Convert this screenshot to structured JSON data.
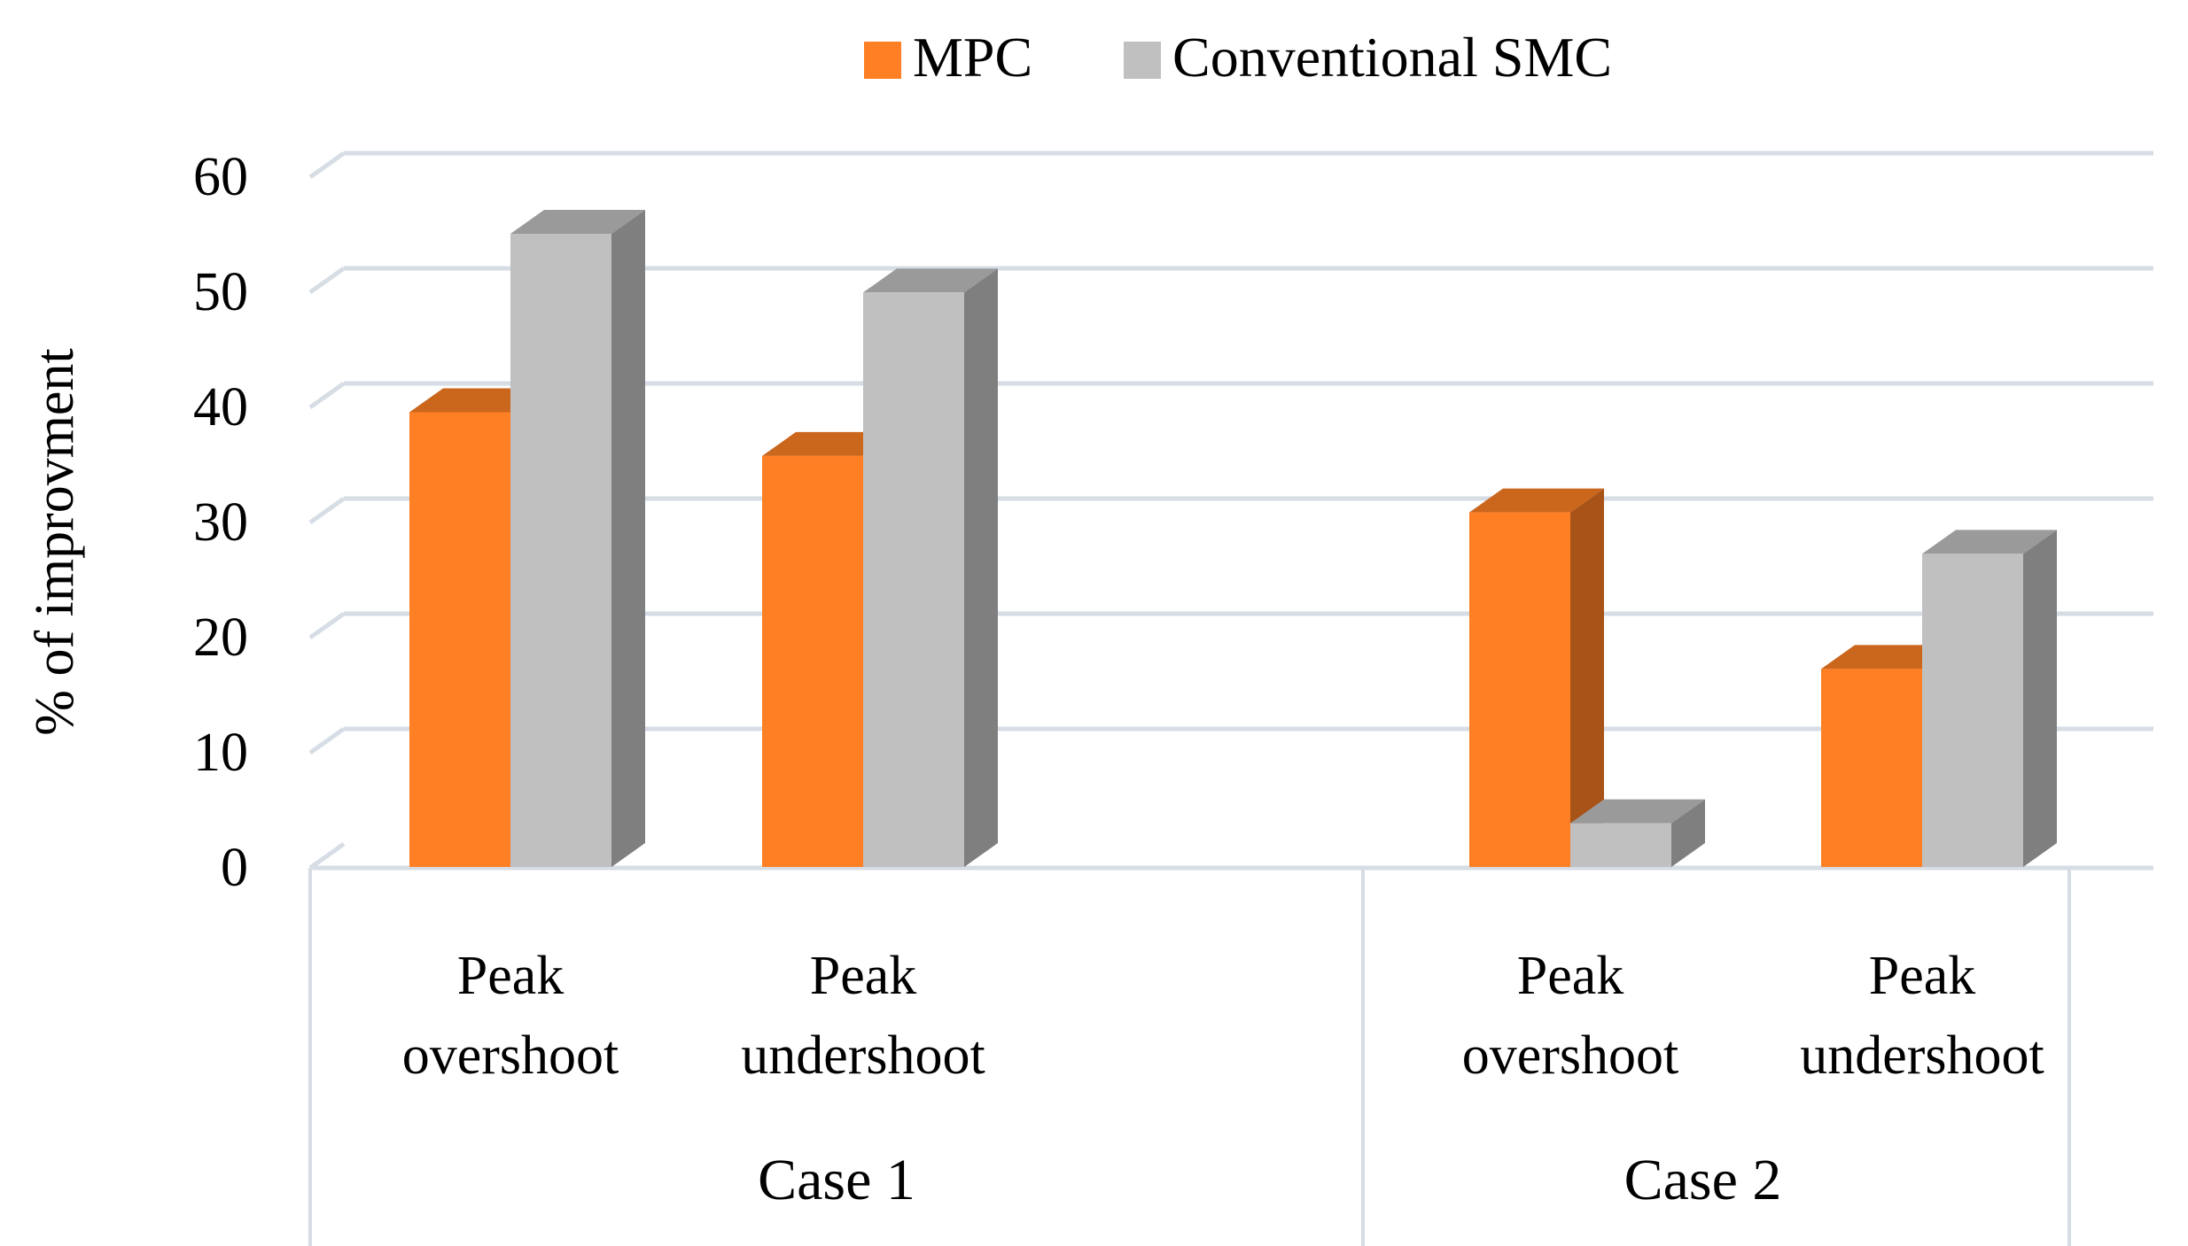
{
  "chart_data": {
    "type": "bar",
    "style": "3d-clustered-column",
    "title": "",
    "xlabel": "",
    "ylabel": "% of improvment",
    "ylim": [
      0,
      60
    ],
    "yticks": [
      0,
      10,
      20,
      30,
      40,
      50,
      60
    ],
    "grid": true,
    "legend_position": "top-center",
    "groups": [
      {
        "label": "Case 1",
        "categories": [
          "Peak\novershoot",
          "Peak\nundershoot"
        ]
      },
      {
        "label": "Case 2",
        "categories": [
          "Peak\novershoot",
          "Peak\nundershoot"
        ]
      }
    ],
    "categories": [
      "Peak overshoot",
      "Peak undershoot",
      "Peak overshoot",
      "Peak undershoot"
    ],
    "series": [
      {
        "name": "MPC",
        "color": "#fe7f24",
        "values": [
          39.5,
          35.7,
          30.8,
          17.2
        ]
      },
      {
        "name": "Conventional SMC",
        "color": "#c0c0c0",
        "values": [
          55,
          49.9,
          3.8,
          27.2
        ]
      }
    ]
  }
}
